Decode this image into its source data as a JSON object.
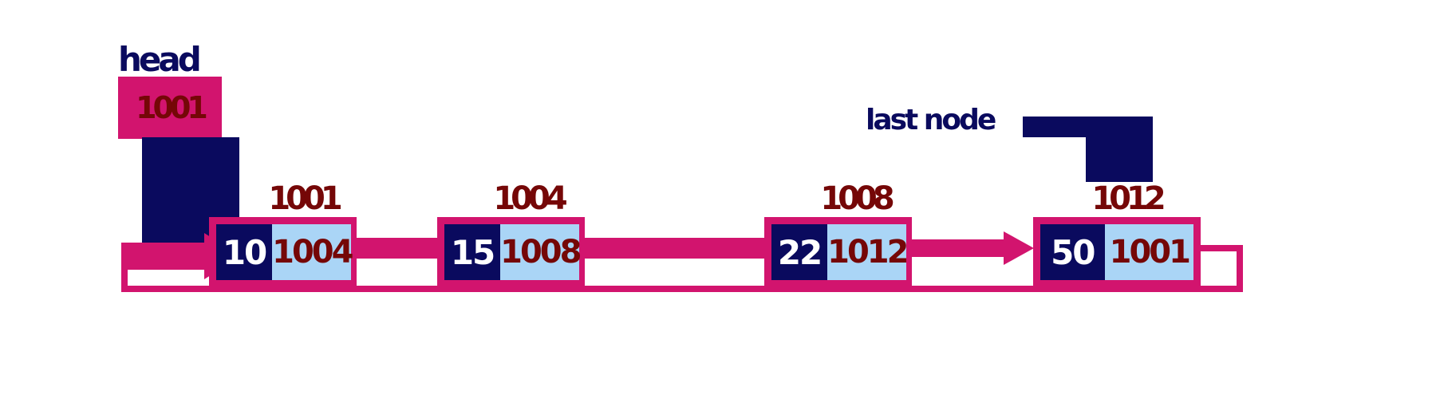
{
  "diagram": {
    "type": "circular-singly-linked-list",
    "head": {
      "label": "head",
      "address": "1001"
    },
    "last": {
      "label": "last node"
    },
    "nodes": [
      {
        "address_label": "1001",
        "data": "10",
        "next": "1004"
      },
      {
        "address_label": "1004",
        "data": "15",
        "next": "1008"
      },
      {
        "address_label": "1008",
        "data": "22",
        "next": "1012"
      },
      {
        "address_label": "1012",
        "data": "50",
        "next": "1001"
      }
    ],
    "colors": {
      "pink": "#d2146e",
      "navy": "#0a0a5e",
      "maroon": "#750707",
      "light_blue": "#aad5f6",
      "data_text": "#ffffff"
    }
  }
}
